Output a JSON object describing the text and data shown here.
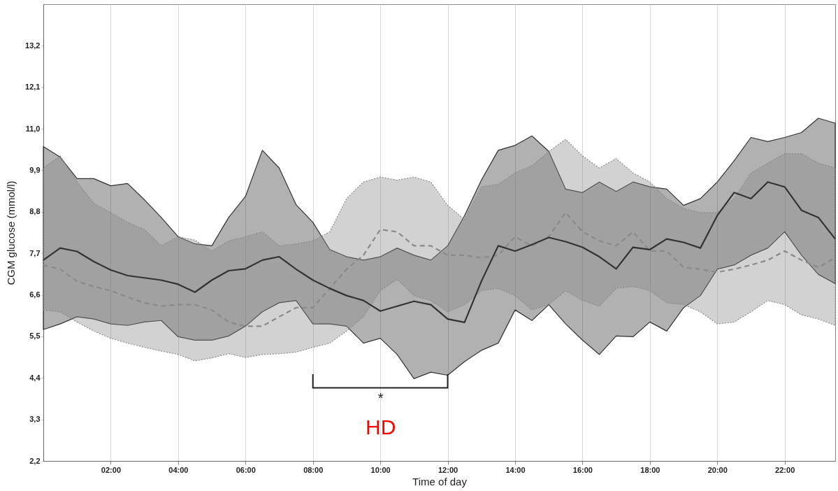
{
  "chart_data": {
    "type": "line",
    "xlabel": "Time of day",
    "ylabel": "CGM glucose (mmol/l)",
    "x": [
      0,
      0.5,
      1,
      1.5,
      2,
      2.5,
      3,
      3.5,
      4,
      4.5,
      5,
      5.5,
      6,
      6.5,
      7,
      7.5,
      8,
      8.5,
      9,
      9.5,
      10,
      10.5,
      11,
      11.5,
      12,
      12.5,
      13,
      13.5,
      14,
      14.5,
      15,
      15.5,
      16,
      16.5,
      17,
      17.5,
      18,
      18.5,
      19,
      19.5,
      20,
      20.5,
      21,
      21.5,
      22,
      22.5,
      23,
      23.5
    ],
    "series": [
      {
        "color": "#333333",
        "line_style": "solid",
        "values": [
          7.52,
          7.84,
          7.75,
          7.48,
          7.26,
          7.11,
          7.05,
          6.99,
          6.88,
          6.67,
          6.99,
          7.24,
          7.29,
          7.52,
          7.61,
          7.28,
          6.99,
          6.77,
          6.58,
          6.45,
          6.17,
          6.3,
          6.43,
          6.34,
          5.96,
          5.87,
          6.96,
          7.9,
          7.76,
          7.93,
          8.12,
          8.01,
          7.86,
          7.61,
          7.29,
          7.86,
          7.8,
          8.08,
          7.99,
          7.84,
          8.7,
          9.31,
          9.15,
          9.59,
          9.46,
          8.84,
          8.65,
          8.08
        ],
        "upper": [
          10.53,
          10.25,
          9.68,
          9.68,
          9.49,
          9.55,
          9.12,
          8.65,
          8.14,
          7.95,
          7.9,
          8.65,
          9.21,
          10.43,
          9.96,
          8.99,
          8.52,
          7.8,
          7.61,
          7.52,
          7.61,
          7.84,
          7.65,
          7.52,
          7.9,
          8.7,
          9.64,
          10.43,
          10.56,
          10.81,
          10.4,
          9.4,
          9.31,
          9.59,
          9.34,
          9.59,
          9.46,
          9.4,
          8.97,
          9.15,
          9.59,
          10.15,
          10.77,
          10.66,
          10.77,
          10.9,
          11.28,
          11.15
        ],
        "lower": [
          5.68,
          5.83,
          6.02,
          5.96,
          5.83,
          5.79,
          5.88,
          5.92,
          5.49,
          5.4,
          5.4,
          5.51,
          5.77,
          6.15,
          6.39,
          6.45,
          5.83,
          5.83,
          5.77,
          5.32,
          5.45,
          5.02,
          4.38,
          4.55,
          4.47,
          4.83,
          5.13,
          5.32,
          6.2,
          5.92,
          6.34,
          5.83,
          5.4,
          5.02,
          5.51,
          5.49,
          5.88,
          5.64,
          6.26,
          6.58,
          7.28,
          7.39,
          7.65,
          7.84,
          8.27,
          7.65,
          7.14,
          6.9
        ]
      },
      {
        "color": "#8a8a8a",
        "line_style": "dashed",
        "values": [
          7.39,
          7.28,
          6.96,
          6.82,
          6.71,
          6.54,
          6.39,
          6.3,
          6.34,
          6.34,
          6.2,
          5.88,
          5.77,
          5.77,
          6.02,
          6.26,
          6.26,
          6.77,
          7.28,
          7.65,
          8.33,
          8.27,
          7.9,
          7.9,
          7.65,
          7.65,
          7.58,
          7.65,
          8.14,
          7.9,
          8.14,
          8.78,
          8.27,
          8.03,
          7.9,
          8.27,
          7.76,
          7.76,
          7.33,
          7.28,
          7.2,
          7.28,
          7.39,
          7.52,
          7.76,
          7.52,
          7.33,
          7.58
        ],
        "upper": [
          9.96,
          10.28,
          9.59,
          9.02,
          8.78,
          8.52,
          8.33,
          7.9,
          8.14,
          8.05,
          7.76,
          8.03,
          8.14,
          8.27,
          7.9,
          7.95,
          8.03,
          8.27,
          9.15,
          9.59,
          9.72,
          9.64,
          9.72,
          9.59,
          8.97,
          8.59,
          9.46,
          9.53,
          9.83,
          10.02,
          10.4,
          10.72,
          10.28,
          9.96,
          10.21,
          9.83,
          9.59,
          9.15,
          8.89,
          8.78,
          8.78,
          9.15,
          9.83,
          10.09,
          10.34,
          10.34,
          10.09,
          9.96
        ],
        "lower": [
          6.2,
          6.15,
          5.88,
          5.64,
          5.45,
          5.32,
          5.21,
          5.11,
          5.02,
          4.85,
          4.93,
          5.04,
          4.94,
          5.02,
          5.04,
          5.08,
          5.21,
          5.32,
          5.64,
          6.02,
          6.71,
          7.01,
          6.58,
          6.45,
          6.15,
          6.34,
          6.71,
          6.77,
          6.58,
          6.2,
          6.34,
          6.71,
          6.45,
          6.3,
          6.77,
          6.82,
          6.71,
          6.39,
          6.34,
          6.15,
          5.83,
          5.88,
          6.15,
          6.45,
          6.34,
          6.07,
          5.96,
          5.79
        ]
      }
    ],
    "xlim": [
      0,
      23.5
    ],
    "xticks": [
      {
        "value": 2,
        "label": "02:00"
      },
      {
        "value": 4,
        "label": "04:00"
      },
      {
        "value": 6,
        "label": "06:00"
      },
      {
        "value": 8,
        "label": "08:00"
      },
      {
        "value": 10,
        "label": "10:00"
      },
      {
        "value": 12,
        "label": "12:00"
      },
      {
        "value": 14,
        "label": "14:00"
      },
      {
        "value": 16,
        "label": "16:00"
      },
      {
        "value": 18,
        "label": "18:00"
      },
      {
        "value": 20,
        "label": "20:00"
      },
      {
        "value": 22,
        "label": "22:00"
      }
    ],
    "ylim": [
      2.2,
      14.3
    ],
    "yticks": [
      {
        "value": 2.2,
        "label": "2,2"
      },
      {
        "value": 3.3,
        "label": "3,3"
      },
      {
        "value": 4.4,
        "label": "4,4"
      },
      {
        "value": 5.5,
        "label": "5,5"
      },
      {
        "value": 6.6,
        "label": "6,6"
      },
      {
        "value": 7.7,
        "label": "7,7"
      },
      {
        "value": 8.8,
        "label": "8,8"
      },
      {
        "value": 9.9,
        "label": "9,9"
      },
      {
        "value": 11,
        "label": "11,0"
      },
      {
        "value": 12.1,
        "label": "12,1"
      },
      {
        "value": 13.2,
        "label": "13,2"
      }
    ],
    "grid": "x",
    "annotations": [
      "*",
      "HD"
    ]
  }
}
